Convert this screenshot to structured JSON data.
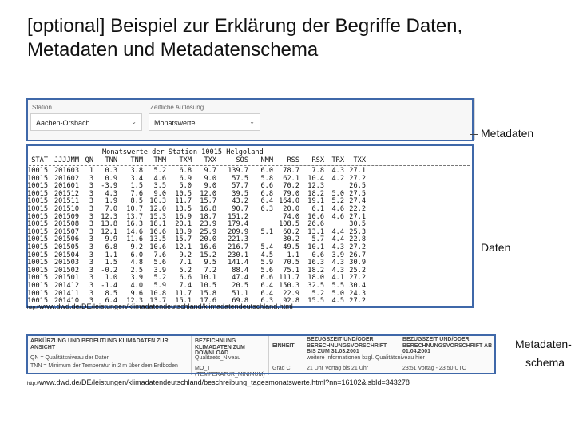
{
  "slide": {
    "title": "[optional] Beispiel zur Erklärung der Begriffe Daten, Metadaten und Metadatenschema"
  },
  "annotations": {
    "metadata": "Metadaten",
    "data": "Daten",
    "schema_line1": "Metadaten-",
    "schema_line2": "schema"
  },
  "controls": {
    "station_label": "Station",
    "station_value": "Aachen-Orsbach",
    "resolution_label": "Zeitliche Auflösung",
    "resolution_value": "Monatswerte",
    "caret": "⌄"
  },
  "table": {
    "caption": "Monatswerte der Station 10015 Helgoland",
    "columns": [
      "STAT",
      "JJJJMM",
      "QN",
      "TNN",
      "TNM",
      "TMM",
      "TXM",
      "TXX",
      "SOS",
      "NMM",
      "RSS",
      "RSX",
      "TRX",
      "TXX"
    ],
    "rows": [
      [
        "10015",
        "201603",
        "1",
        "0.3",
        "3.8",
        "5.2",
        "6.8",
        "9.7",
        "139.7",
        "6.0",
        "78.7",
        "7.8",
        "4.3",
        "27.1"
      ],
      [
        "10015",
        "201602",
        "3",
        "0.9",
        "3.4",
        "4.6",
        "6.9",
        "9.0",
        "57.5",
        "5.8",
        "62.1",
        "10.4",
        "4.2",
        "27.2"
      ],
      [
        "10015",
        "201601",
        "3",
        "-3.9",
        "1.5",
        "3.5",
        "5.0",
        "9.0",
        "57.7",
        "6.6",
        "70.2",
        "12.3",
        "",
        "26.5"
      ],
      [
        "10015",
        "201512",
        "3",
        "4.3",
        "7.6",
        "9.0",
        "10.5",
        "12.0",
        "39.5",
        "6.8",
        "79.0",
        "18.2",
        "5.0",
        "27.5"
      ],
      [
        "10015",
        "201511",
        "3",
        "1.9",
        "8.5",
        "10.3",
        "11.7",
        "15.7",
        "43.2",
        "6.4",
        "164.0",
        "19.1",
        "5.2",
        "27.4"
      ],
      [
        "10015",
        "201510",
        "3",
        "7.0",
        "10.7",
        "12.0",
        "13.5",
        "16.8",
        "90.7",
        "6.3",
        "20.0",
        "6.1",
        "4.6",
        "22.2"
      ],
      [
        "10015",
        "201509",
        "3",
        "12.3",
        "13.7",
        "15.3",
        "16.9",
        "18.7",
        "151.2",
        "",
        "74.0",
        "10.6",
        "4.6",
        "27.1"
      ],
      [
        "10015",
        "201508",
        "3",
        "13.8",
        "16.3",
        "18.1",
        "20.1",
        "23.9",
        "179.4",
        "",
        "108.5",
        "26.6",
        "",
        "30.5"
      ],
      [
        "10015",
        "201507",
        "3",
        "12.1",
        "14.6",
        "16.6",
        "18.9",
        "25.9",
        "209.9",
        "5.1",
        "60.2",
        "13.1",
        "4.4",
        "25.3"
      ],
      [
        "10015",
        "201506",
        "3",
        "9.9",
        "11.6",
        "13.5",
        "15.7",
        "20.0",
        "221.3",
        "",
        "30.2",
        "5.7",
        "4.4",
        "22.8"
      ],
      [
        "10015",
        "201505",
        "3",
        "6.8",
        "9.2",
        "10.6",
        "12.1",
        "16.6",
        "216.7",
        "5.4",
        "49.5",
        "10.1",
        "4.3",
        "27.2"
      ],
      [
        "10015",
        "201504",
        "3",
        "1.1",
        "6.0",
        "7.6",
        "9.2",
        "15.2",
        "230.1",
        "4.5",
        "1.1",
        "0.6",
        "3.9",
        "26.7"
      ],
      [
        "10015",
        "201503",
        "3",
        "1.5",
        "4.8",
        "5.6",
        "7.1",
        "9.5",
        "141.4",
        "5.9",
        "70.5",
        "16.3",
        "4.3",
        "30.9"
      ],
      [
        "10015",
        "201502",
        "3",
        "-0.2",
        "2.5",
        "3.9",
        "5.2",
        "7.2",
        "88.4",
        "5.6",
        "75.1",
        "18.2",
        "4.3",
        "25.2"
      ],
      [
        "10015",
        "201501",
        "3",
        "1.0",
        "3.9",
        "5.2",
        "6.6",
        "10.1",
        "47.4",
        "6.6",
        "111.7",
        "18.0",
        "4.1",
        "27.2"
      ],
      [
        "10015",
        "201412",
        "3",
        "-1.4",
        "4.0",
        "5.9",
        "7.4",
        "10.5",
        "20.5",
        "6.4",
        "150.3",
        "32.5",
        "5.5",
        "30.4"
      ],
      [
        "10015",
        "201411",
        "3",
        "8.5",
        "9.6",
        "10.8",
        "11.7",
        "15.8",
        "51.1",
        "6.4",
        "22.9",
        "5.2",
        "5.0",
        "24.3"
      ],
      [
        "10015",
        "201410",
        "3",
        "6.4",
        "12.3",
        "13.7",
        "15.1",
        "17.6",
        "69.8",
        "6.3",
        "92.8",
        "15.5",
        "4.5",
        "27.2"
      ]
    ]
  },
  "urls": {
    "prefix": "http://",
    "data_url": "www.dwd.de/DE/leistungen/klimadatendeutschland/klimadatendeutschland.html",
    "schema_url": "www.dwd.de/DE/leistungen/klimadatendeutschland/beschreibung_tagesmonatswerte.html?nn=16102&lsbId=343278"
  },
  "schema": {
    "h1": "ABKÜRZUNG UND BEDEUTUNG KLIMADATEN ZUR ANSICHT",
    "h2": "BEZEICHNUNG KLIMADATEN ZUM DOWNLOAD",
    "h3": "EINHEIT",
    "h4": "BEZUGSZEIT UND/ODER BERECHNUNGSVORSCHRIFT BIS ZUM 31.03.2001",
    "h5": "BEZUGSZEIT UND/ODER BERECHNUNGSVORSCHRIFT AB 01.04.2001",
    "r1c1": "QN = Qualitätsniveau der Daten",
    "r1c2": "Qualitaets_Niveau",
    "r1c4": "weitere Informationen bzgl. Qualitätsniveau hier",
    "r2c1": "TNN = Minimum der Temperatur in 2 m über dem Erdboden",
    "r2c2": "MO_TT (TEMPERATUR_MINIMUM)",
    "r2c3": "Grad C",
    "r2c4": "21 Uhr Vortag bis 21 Uhr",
    "r2c5": "23:51 Vortag - 23:50 UTC"
  }
}
